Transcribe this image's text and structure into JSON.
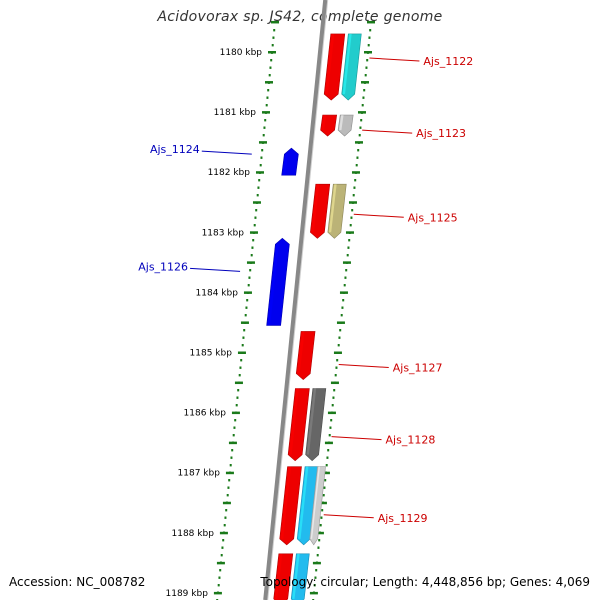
{
  "title": "Acidovorax sp. JS42, complete genome",
  "accession_text": "Accession: NC_008782",
  "summary_text": "Topology: circular; Length: 4,448,856 bp; Genes: 4,069",
  "colors": {
    "forward_label": "#cc0000",
    "reverse_label": "#0000bb",
    "tick": "#1a7a1a",
    "backbone": "#888888"
  },
  "kbp_ticks": [
    {
      "label": "1180 kbp",
      "kbp": 1180
    },
    {
      "label": "1181 kbp",
      "kbp": 1181
    },
    {
      "label": "1182 kbp",
      "kbp": 1182
    },
    {
      "label": "1183 kbp",
      "kbp": 1183
    },
    {
      "label": "1184 kbp",
      "kbp": 1184
    },
    {
      "label": "1185 kbp",
      "kbp": 1185
    },
    {
      "label": "1186 kbp",
      "kbp": 1186
    },
    {
      "label": "1187 kbp",
      "kbp": 1187
    },
    {
      "label": "1188 kbp",
      "kbp": 1188
    },
    {
      "label": "1189 kbp",
      "kbp": 1189
    }
  ],
  "genes": [
    {
      "name": "Ajs_1122",
      "strand": "forward",
      "kbp_start": 1179.7,
      "kbp_end": 1180.8,
      "feature": "CDS",
      "color": "#ee0000"
    },
    {
      "name": "Ajs_1122",
      "strand": "forward",
      "kbp_start": 1179.7,
      "kbp_end": 1180.8,
      "feature": "ORF",
      "color": "#22cccc"
    },
    {
      "name": "Ajs_1123",
      "strand": "forward",
      "kbp_start": 1181.05,
      "kbp_end": 1181.4,
      "feature": "CDS",
      "color": "#ee0000"
    },
    {
      "name": "Ajs_1123",
      "strand": "forward",
      "kbp_start": 1181.05,
      "kbp_end": 1181.4,
      "feature": "ORF",
      "color": "#bbbbbb"
    },
    {
      "name": "Ajs_1124",
      "strand": "reverse",
      "kbp_start": 1181.6,
      "kbp_end": 1182.05,
      "feature": "CDS",
      "color": "#0000ee"
    },
    {
      "name": "Ajs_1125",
      "strand": "forward",
      "kbp_start": 1182.2,
      "kbp_end": 1183.1,
      "feature": "CDS",
      "color": "#ee0000"
    },
    {
      "name": "Ajs_1125",
      "strand": "forward",
      "kbp_start": 1182.2,
      "kbp_end": 1183.1,
      "feature": "ORF",
      "color": "#bbb377"
    },
    {
      "name": "Ajs_1126",
      "strand": "reverse",
      "kbp_start": 1183.1,
      "kbp_end": 1184.55,
      "feature": "CDS",
      "color": "#0000ee"
    },
    {
      "name": "Ajs_1127",
      "strand": "forward",
      "kbp_start": 1184.65,
      "kbp_end": 1185.45,
      "feature": "CDS",
      "color": "#ee0000"
    },
    {
      "name": "Ajs_1128",
      "strand": "forward",
      "kbp_start": 1185.6,
      "kbp_end": 1186.8,
      "feature": "CDS",
      "color": "#ee0000"
    },
    {
      "name": "Ajs_1128",
      "strand": "forward",
      "kbp_start": 1185.6,
      "kbp_end": 1186.8,
      "feature": "ORF",
      "color": "#666666"
    },
    {
      "name": "Ajs_1129",
      "strand": "forward",
      "kbp_start": 1186.9,
      "kbp_end": 1188.2,
      "feature": "CDS",
      "color": "#ee0000"
    },
    {
      "name": "Ajs_1129",
      "strand": "forward",
      "kbp_start": 1186.9,
      "kbp_end": 1188.2,
      "feature": "ORF",
      "color": "#22bbee"
    },
    {
      "name": "Ajs_1129",
      "strand": "forward",
      "kbp_start": 1186.9,
      "kbp_end": 1188.2,
      "feature": "ORF2",
      "color": "#cccccc"
    },
    {
      "name": "",
      "strand": "forward",
      "kbp_start": 1188.35,
      "kbp_end": 1189.2,
      "feature": "CDS",
      "color": "#ee0000"
    },
    {
      "name": "",
      "strand": "forward",
      "kbp_start": 1188.35,
      "kbp_end": 1189.2,
      "feature": "ORF",
      "color": "#22bbee"
    }
  ],
  "gene_labels": [
    {
      "text": "Ajs_1122",
      "strand": "forward",
      "kbp": 1180.1
    },
    {
      "text": "Ajs_1123",
      "strand": "forward",
      "kbp": 1181.3
    },
    {
      "text": "Ajs_1124",
      "strand": "reverse",
      "kbp": 1181.7
    },
    {
      "text": "Ajs_1125",
      "strand": "forward",
      "kbp": 1182.7
    },
    {
      "text": "Ajs_1126",
      "strand": "reverse",
      "kbp": 1183.65
    },
    {
      "text": "Ajs_1127",
      "strand": "forward",
      "kbp": 1185.2
    },
    {
      "text": "Ajs_1128",
      "strand": "forward",
      "kbp": 1186.4
    },
    {
      "text": "Ajs_1129",
      "strand": "forward",
      "kbp": 1187.7
    }
  ]
}
